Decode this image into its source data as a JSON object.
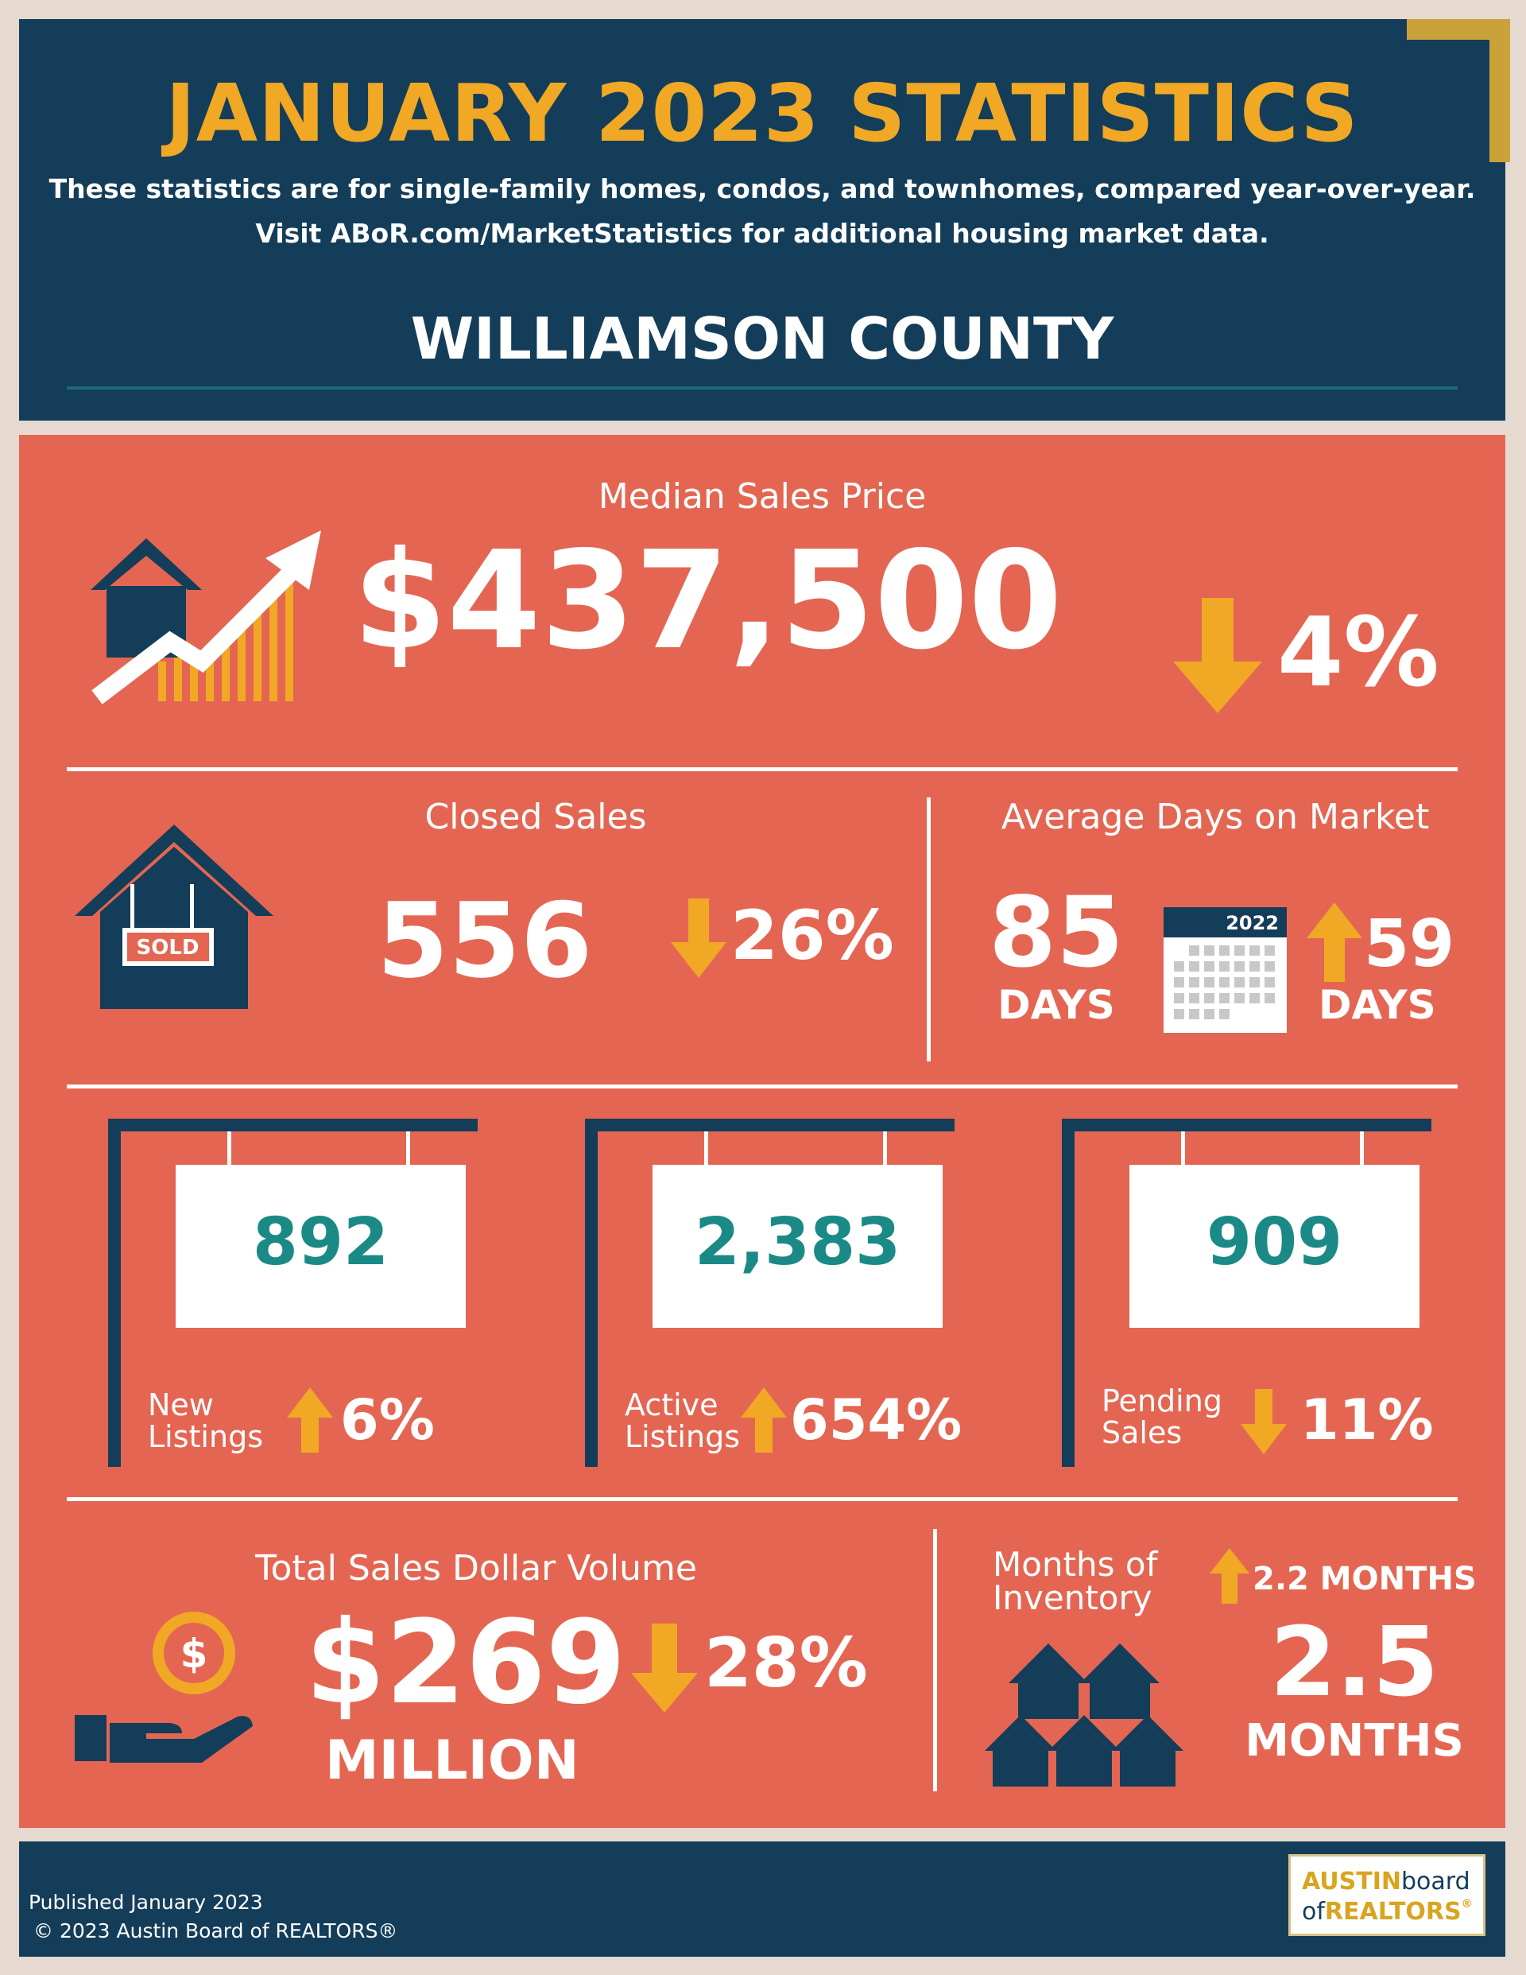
{
  "header": {
    "title": "JANUARY 2023 STATISTICS",
    "intro_line1": "These statistics are for single-family homes, condos, and townhomes, compared year-over-year.",
    "intro_line2": "Visit ABoR.com/MarketStatistics for additional housing market data.",
    "county": "WILLIAMSON COUNTY"
  },
  "median_sales_price": {
    "label": "Median Sales Price",
    "value": "$437,500",
    "change_direction": "down",
    "change": "4%",
    "icon": "house-growth-chart-icon"
  },
  "closed_sales": {
    "label": "Closed Sales",
    "value": "556",
    "change_direction": "down",
    "change": "26%",
    "sign_text": "SOLD",
    "icon": "sold-house-icon"
  },
  "avg_days_on_market": {
    "label": "Average Days on Market",
    "value": "85",
    "unit": "DAYS",
    "calendar_year": "2022",
    "change_direction": "up",
    "change": "59",
    "change_unit": "DAYS",
    "icon": "calendar-icon"
  },
  "listings": [
    {
      "value": "892",
      "label_line1": "New",
      "label_line2": "Listings",
      "change_direction": "up",
      "change": "6%"
    },
    {
      "value": "2,383",
      "label_line1": "Active",
      "label_line2": "Listings",
      "change_direction": "up",
      "change": "654%"
    },
    {
      "value": "909",
      "label_line1": "Pending",
      "label_line2": "Sales",
      "change_direction": "down",
      "change": "11%"
    }
  ],
  "total_sales_volume": {
    "label": "Total Sales Dollar Volume",
    "value": "$269",
    "unit": "MILLION",
    "change_direction": "down",
    "change": "28%",
    "icon": "hand-coin-icon"
  },
  "months_of_inventory": {
    "label_line1": "Months of",
    "label_line2": "Inventory",
    "change_direction": "up",
    "change": "2.2 MONTHS",
    "value": "2.5",
    "unit": "MONTHS",
    "icon": "houses-stack-icon"
  },
  "footer": {
    "published": "Published January 2023",
    "copyright": "© 2023 Austin Board of REALTORS®",
    "logo_line1_a": "AUSTIN",
    "logo_line1_b": "board",
    "logo_line2_a": "of",
    "logo_line2_b": "REALTORS",
    "logo_reg": "®"
  },
  "colors": {
    "navy": "#143d59",
    "coral": "#e46652",
    "gold": "#f0a825",
    "teal": "#1b8a86",
    "beige": "#e6d9cf"
  }
}
